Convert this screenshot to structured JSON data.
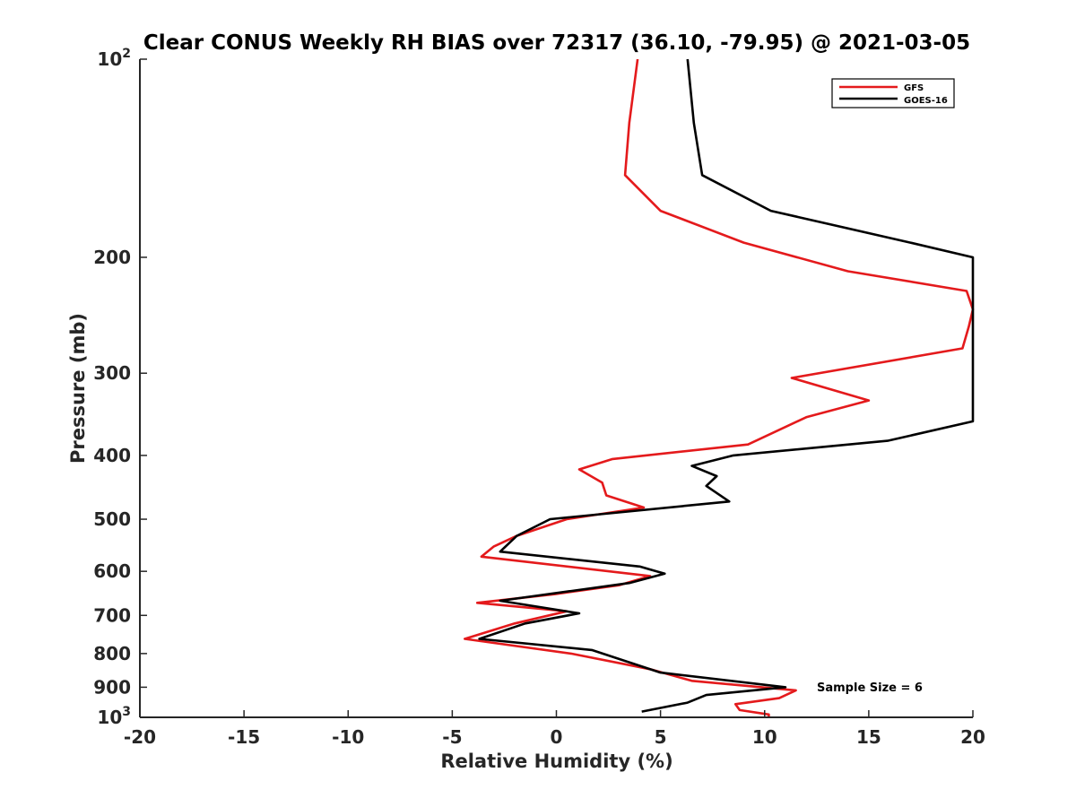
{
  "chart_data": {
    "type": "line",
    "title": "Clear CONUS Weekly RH BIAS over 72317 (36.10, -79.95) @ 2021-03-05",
    "xlabel": "Relative Humidity (%)",
    "ylabel": "Pressure (mb)",
    "xlim": [
      -20,
      20
    ],
    "ylim": [
      100,
      1000
    ],
    "y_scale": "log",
    "y_reversed": true,
    "grid": false,
    "legend_position": "top-right",
    "x_ticks": [
      "-20",
      "-15",
      "-10",
      "-5",
      "0",
      "5",
      "10",
      "15",
      "20"
    ],
    "y_ticks": [
      {
        "value": 100,
        "base": "10",
        "exp": "2"
      },
      {
        "value": 200,
        "label": "200"
      },
      {
        "value": 300,
        "label": "300"
      },
      {
        "value": 400,
        "label": "400"
      },
      {
        "value": 500,
        "label": "500"
      },
      {
        "value": 600,
        "label": "600"
      },
      {
        "value": 700,
        "label": "700"
      },
      {
        "value": 800,
        "label": "800"
      },
      {
        "value": 900,
        "label": "900"
      },
      {
        "value": 1000,
        "base": "10",
        "exp": "3"
      }
    ],
    "annotation": "Sample Size = 6",
    "series": [
      {
        "name": "GFS",
        "color": "#e41a1c",
        "points": [
          [
            3.9,
            100
          ],
          [
            3.5,
            125
          ],
          [
            3.3,
            150
          ],
          [
            5.0,
            170
          ],
          [
            9.0,
            190
          ],
          [
            14.0,
            210
          ],
          [
            19.7,
            225
          ],
          [
            20.0,
            240
          ],
          [
            19.8,
            255
          ],
          [
            19.5,
            275
          ],
          [
            11.3,
            305
          ],
          [
            15.0,
            330
          ],
          [
            12.0,
            350
          ],
          [
            9.2,
            385
          ],
          [
            2.7,
            405
          ],
          [
            1.1,
            420
          ],
          [
            2.2,
            440
          ],
          [
            2.4,
            460
          ],
          [
            4.2,
            480
          ],
          [
            0.5,
            500
          ],
          [
            -1.9,
            530
          ],
          [
            -3.0,
            550
          ],
          [
            -3.6,
            570
          ],
          [
            4.5,
            610
          ],
          [
            3.0,
            630
          ],
          [
            -0.1,
            650
          ],
          [
            -3.8,
            670
          ],
          [
            0.5,
            690
          ],
          [
            -2.0,
            720
          ],
          [
            -4.4,
            760
          ],
          [
            0.7,
            800
          ],
          [
            4.5,
            845
          ],
          [
            6.5,
            880
          ],
          [
            11.5,
            910
          ],
          [
            10.7,
            935
          ],
          [
            8.6,
            955
          ],
          [
            8.8,
            975
          ],
          [
            10.2,
            990
          ],
          [
            10.2,
            1000
          ]
        ]
      },
      {
        "name": "GOES-16",
        "color": "#000000",
        "points": [
          [
            6.3,
            100
          ],
          [
            6.6,
            125
          ],
          [
            7.0,
            150
          ],
          [
            10.3,
            170
          ],
          [
            17.0,
            190
          ],
          [
            20.0,
            200
          ],
          [
            20.0,
            355
          ],
          [
            15.9,
            380
          ],
          [
            8.5,
            400
          ],
          [
            6.5,
            415
          ],
          [
            7.7,
            430
          ],
          [
            7.2,
            445
          ],
          [
            8.3,
            470
          ],
          [
            -0.3,
            500
          ],
          [
            -1.9,
            530
          ],
          [
            -2.7,
            560
          ],
          [
            4.0,
            590
          ],
          [
            5.2,
            605
          ],
          [
            3.5,
            625
          ],
          [
            -2.7,
            665
          ],
          [
            1.1,
            695
          ],
          [
            -1.5,
            720
          ],
          [
            -3.7,
            760
          ],
          [
            1.7,
            790
          ],
          [
            5.0,
            855
          ],
          [
            11.0,
            900
          ],
          [
            7.2,
            925
          ],
          [
            6.3,
            950
          ],
          [
            4.1,
            980
          ]
        ]
      }
    ]
  }
}
